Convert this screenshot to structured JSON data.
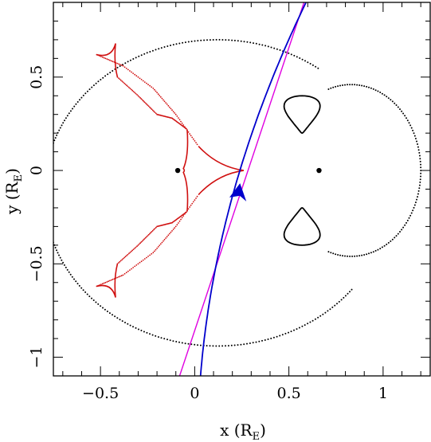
{
  "chart_data": {
    "type": "scatter",
    "xlabel_main": "x (R",
    "xlabel_sub": "E",
    "xlabel_end": ")",
    "ylabel_main": "y (R",
    "ylabel_sub": "E",
    "ylabel_end": ")",
    "xlim": [
      -0.75,
      1.25
    ],
    "ylim": [
      -1.1,
      0.9
    ],
    "x_ticks": [
      {
        "value": -0.5,
        "label": "−0.5"
      },
      {
        "value": 0,
        "label": "0"
      },
      {
        "value": 0.5,
        "label": "0.5"
      },
      {
        "value": 1,
        "label": "1"
      }
    ],
    "y_ticks": [
      {
        "value": -1,
        "label": "−1"
      },
      {
        "value": -0.5,
        "label": "−0.5"
      },
      {
        "value": 0,
        "label": "0"
      },
      {
        "value": 0.5,
        "label": "0.5"
      }
    ],
    "grid": false,
    "lenses": [
      [
        -0.09,
        0.0
      ],
      [
        0.66,
        0.0
      ]
    ],
    "colors": {
      "critical_curve": "#000000",
      "caustic": "#d01010",
      "trajectory": "#0000cc",
      "straight_line": "#e000e0"
    },
    "trajectory_arrow": {
      "x": 0.24,
      "y": -0.15
    },
    "series": []
  }
}
